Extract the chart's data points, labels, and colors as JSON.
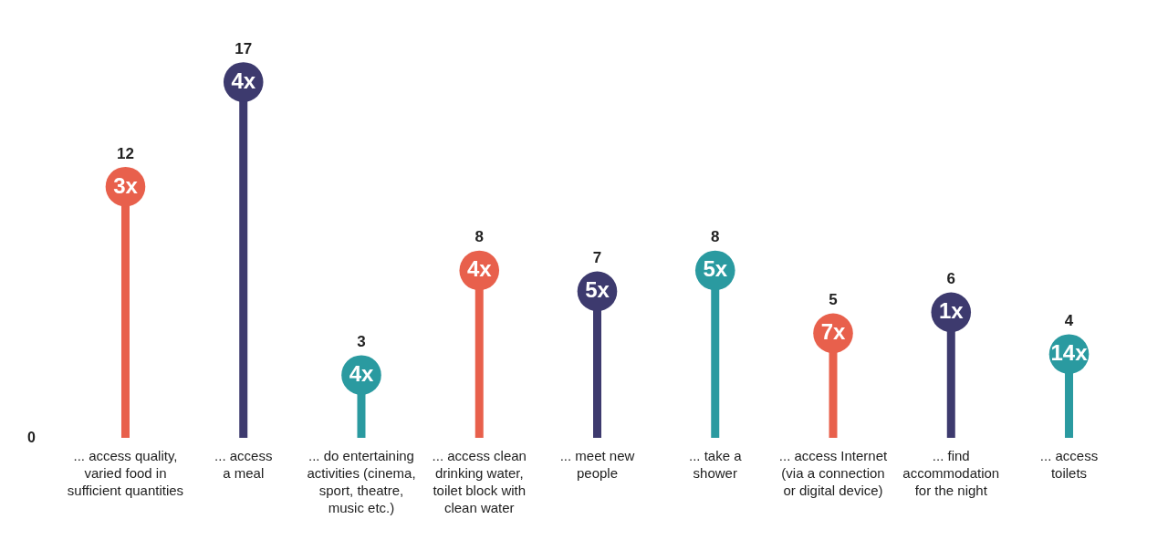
{
  "chart_data": {
    "type": "lollipop",
    "categories": [
      "... access quality,\nvaried food in\nsufficient quantities",
      "... access\na meal",
      "... do entertaining\nactivities (cinema,\nsport, theatre,\nmusic etc.)",
      "... access clean\ndrinking water,\ntoilet block with\nclean water",
      "... meet new\npeople",
      "... take a\nshower",
      "... access Internet\n(via a connection\nor digital device)",
      "... find\naccommodation\nfor the night",
      "... access\ntoilets"
    ],
    "values": [
      12,
      17,
      3,
      8,
      7,
      8,
      5,
      6,
      4
    ],
    "colors": [
      "#e8604c",
      "#3d3a6e",
      "#2a9aa0",
      "#e8604c",
      "#3d3a6e",
      "#2a9aa0",
      "#e8604c",
      "#3d3a6e",
      "#2a9aa0"
    ],
    "data_labels": true,
    "annotations": [
      "0",
      {
        "text": "3x",
        "x": "... access quality,\nvaried food in\nsufficient quantities",
        "y": 12
      },
      {
        "text": "4x",
        "x": "... access\na meal",
        "y": 17
      },
      {
        "text": "4x",
        "x": "... do entertaining\nactivities (cinema,\nsport, theatre,\nmusic etc.)",
        "y": 3
      },
      {
        "text": "4x",
        "x": "... access clean\ndrinking water,\ntoilet block with\nclean water",
        "y": 8
      },
      {
        "text": "5x",
        "x": "... meet new\npeople",
        "y": 7
      },
      {
        "text": "5x",
        "x": "... take a\nshower",
        "y": 8
      },
      {
        "text": "7x",
        "x": "... access Internet\n(via a connection\nor digital device)",
        "y": 5
      },
      {
        "text": "1x",
        "x": "... find\naccommodation\nfor the night",
        "y": 6
      },
      {
        "text": "14x",
        "x": "... access\ntoilets",
        "y": 4
      }
    ],
    "marker": "circle",
    "grid": false
  }
}
